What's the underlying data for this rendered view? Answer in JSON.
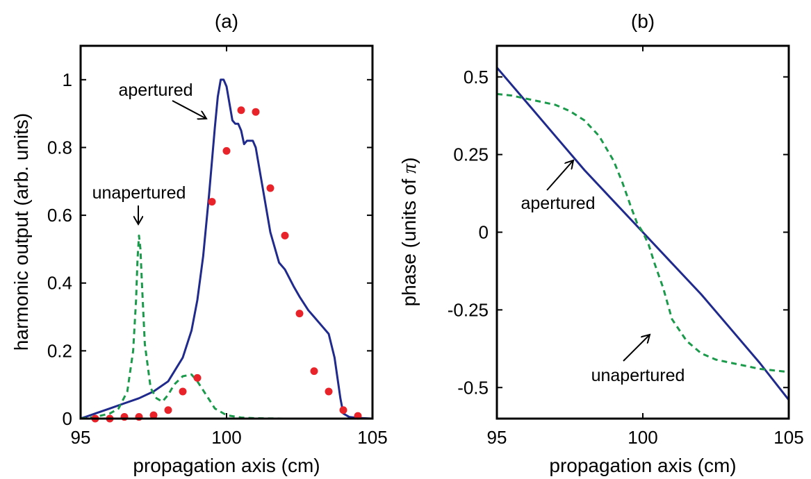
{
  "chart_data": [
    {
      "panel": "(a)",
      "type": "line",
      "title": "(a)",
      "xlabel": "propagation axis (cm)",
      "ylabel": "harmonic output (arb. units)",
      "xlim": [
        95,
        105
      ],
      "ylim": [
        0,
        1.1
      ],
      "xticks": [
        95,
        100,
        105
      ],
      "yticks": [
        0,
        0.2,
        0.4,
        0.6,
        0.8,
        1
      ],
      "ytick_labels": [
        "0",
        "0.2",
        "0.4",
        "0.6",
        "0.8",
        "1"
      ],
      "xtick_labels": [
        "95",
        "100",
        "105"
      ],
      "grid": false,
      "series": [
        {
          "color": "#1f2a8c",
          "style": "solid",
          "x": [
            95,
            95.5,
            96,
            96.5,
            97,
            97.5,
            98,
            98.5,
            98.8,
            99.0,
            99.2,
            99.4,
            99.6,
            99.7,
            99.8,
            99.9,
            100.0,
            100.1,
            100.2,
            100.3,
            100.4,
            100.5,
            100.6,
            100.7,
            100.8,
            100.9,
            101.0,
            101.2,
            101.5,
            101.8,
            102.0,
            102.3,
            102.5,
            102.8,
            103.0,
            103.3,
            103.5,
            103.7,
            103.8,
            103.9,
            104.0,
            104.2,
            104.5,
            105
          ],
          "y": [
            0.0,
            0.015,
            0.03,
            0.045,
            0.06,
            0.08,
            0.11,
            0.18,
            0.26,
            0.35,
            0.48,
            0.66,
            0.86,
            0.95,
            1.0,
            1.0,
            0.98,
            0.93,
            0.88,
            0.87,
            0.87,
            0.85,
            0.81,
            0.82,
            0.82,
            0.82,
            0.8,
            0.7,
            0.55,
            0.46,
            0.44,
            0.39,
            0.36,
            0.32,
            0.3,
            0.27,
            0.25,
            0.18,
            0.12,
            0.06,
            0.015,
            0.005,
            0.002,
            0.0
          ]
        },
        {
          "color": "#1c9a4c",
          "style": "dashed",
          "x": [
            95,
            95.5,
            96,
            96.3,
            96.6,
            96.8,
            96.9,
            96.95,
            97.0,
            97.05,
            97.1,
            97.2,
            97.4,
            97.6,
            97.8,
            98.0,
            98.2,
            98.5,
            98.8,
            99.0,
            99.3,
            99.6,
            100.0,
            100.5,
            101.0,
            102.0,
            103.0,
            104.0,
            105
          ],
          "y": [
            0.0,
            0.005,
            0.015,
            0.03,
            0.08,
            0.2,
            0.35,
            0.47,
            0.54,
            0.5,
            0.4,
            0.22,
            0.09,
            0.06,
            0.05,
            0.07,
            0.1,
            0.125,
            0.13,
            0.11,
            0.07,
            0.03,
            0.01,
            0.003,
            0.001,
            0.0,
            0.0,
            0.0,
            0.0
          ]
        },
        {
          "color": "#e8232a",
          "style": "points",
          "x": [
            95.5,
            96.0,
            96.5,
            97.0,
            97.5,
            98.0,
            98.5,
            99.0,
            99.5,
            100.0,
            100.5,
            101.0,
            101.5,
            102.0,
            102.5,
            103.0,
            103.5,
            104.0,
            104.5
          ],
          "y": [
            0.0,
            0.0,
            0.005,
            0.005,
            0.01,
            0.025,
            0.08,
            0.12,
            0.64,
            0.79,
            0.91,
            0.905,
            0.68,
            0.54,
            0.31,
            0.14,
            0.08,
            0.025,
            0.008
          ]
        }
      ],
      "annotations": [
        {
          "text": "apertured"
        },
        {
          "text": "unapertured"
        }
      ]
    },
    {
      "panel": "(b)",
      "type": "line",
      "title": "(b)",
      "xlabel": "propagation axis (cm)",
      "ylabel": "phase (units of π)",
      "ylabel_main": "phase (units of ",
      "ylabel_symbol": "π",
      "ylabel_tail": ")",
      "xlim": [
        95,
        105
      ],
      "ylim": [
        -0.6,
        0.6
      ],
      "xticks": [
        95,
        100,
        105
      ],
      "yticks": [
        0.5,
        0.25,
        0,
        -0.25,
        -0.5
      ],
      "ytick_labels": [
        "0.5",
        "0.25",
        "0",
        "-0.25",
        "-0.5"
      ],
      "xtick_labels": [
        "95",
        "100",
        "105"
      ],
      "grid": false,
      "series": [
        {
          "color": "#1f2a8c",
          "style": "solid",
          "x": [
            95,
            96,
            97,
            98,
            99,
            100,
            101,
            102,
            103,
            104,
            105
          ],
          "y": [
            0.53,
            0.42,
            0.31,
            0.2,
            0.1,
            0.0,
            -0.1,
            -0.2,
            -0.31,
            -0.42,
            -0.54
          ]
        },
        {
          "color": "#1c9a4c",
          "style": "dashed",
          "x": [
            95,
            95.5,
            96,
            96.5,
            97,
            97.5,
            98,
            98.5,
            99,
            99.3,
            99.6,
            99.8,
            100,
            100.2,
            100.4,
            100.7,
            101,
            101.5,
            102,
            102.5,
            103,
            103.5,
            104,
            104.5,
            105
          ],
          "y": [
            0.445,
            0.44,
            0.43,
            0.42,
            0.41,
            0.39,
            0.36,
            0.31,
            0.23,
            0.16,
            0.08,
            0.03,
            0.0,
            -0.04,
            -0.1,
            -0.18,
            -0.28,
            -0.35,
            -0.39,
            -0.41,
            -0.42,
            -0.43,
            -0.44,
            -0.445,
            -0.45
          ]
        }
      ],
      "annotations": [
        {
          "text": "apertured"
        },
        {
          "text": "unapertured"
        }
      ]
    }
  ]
}
